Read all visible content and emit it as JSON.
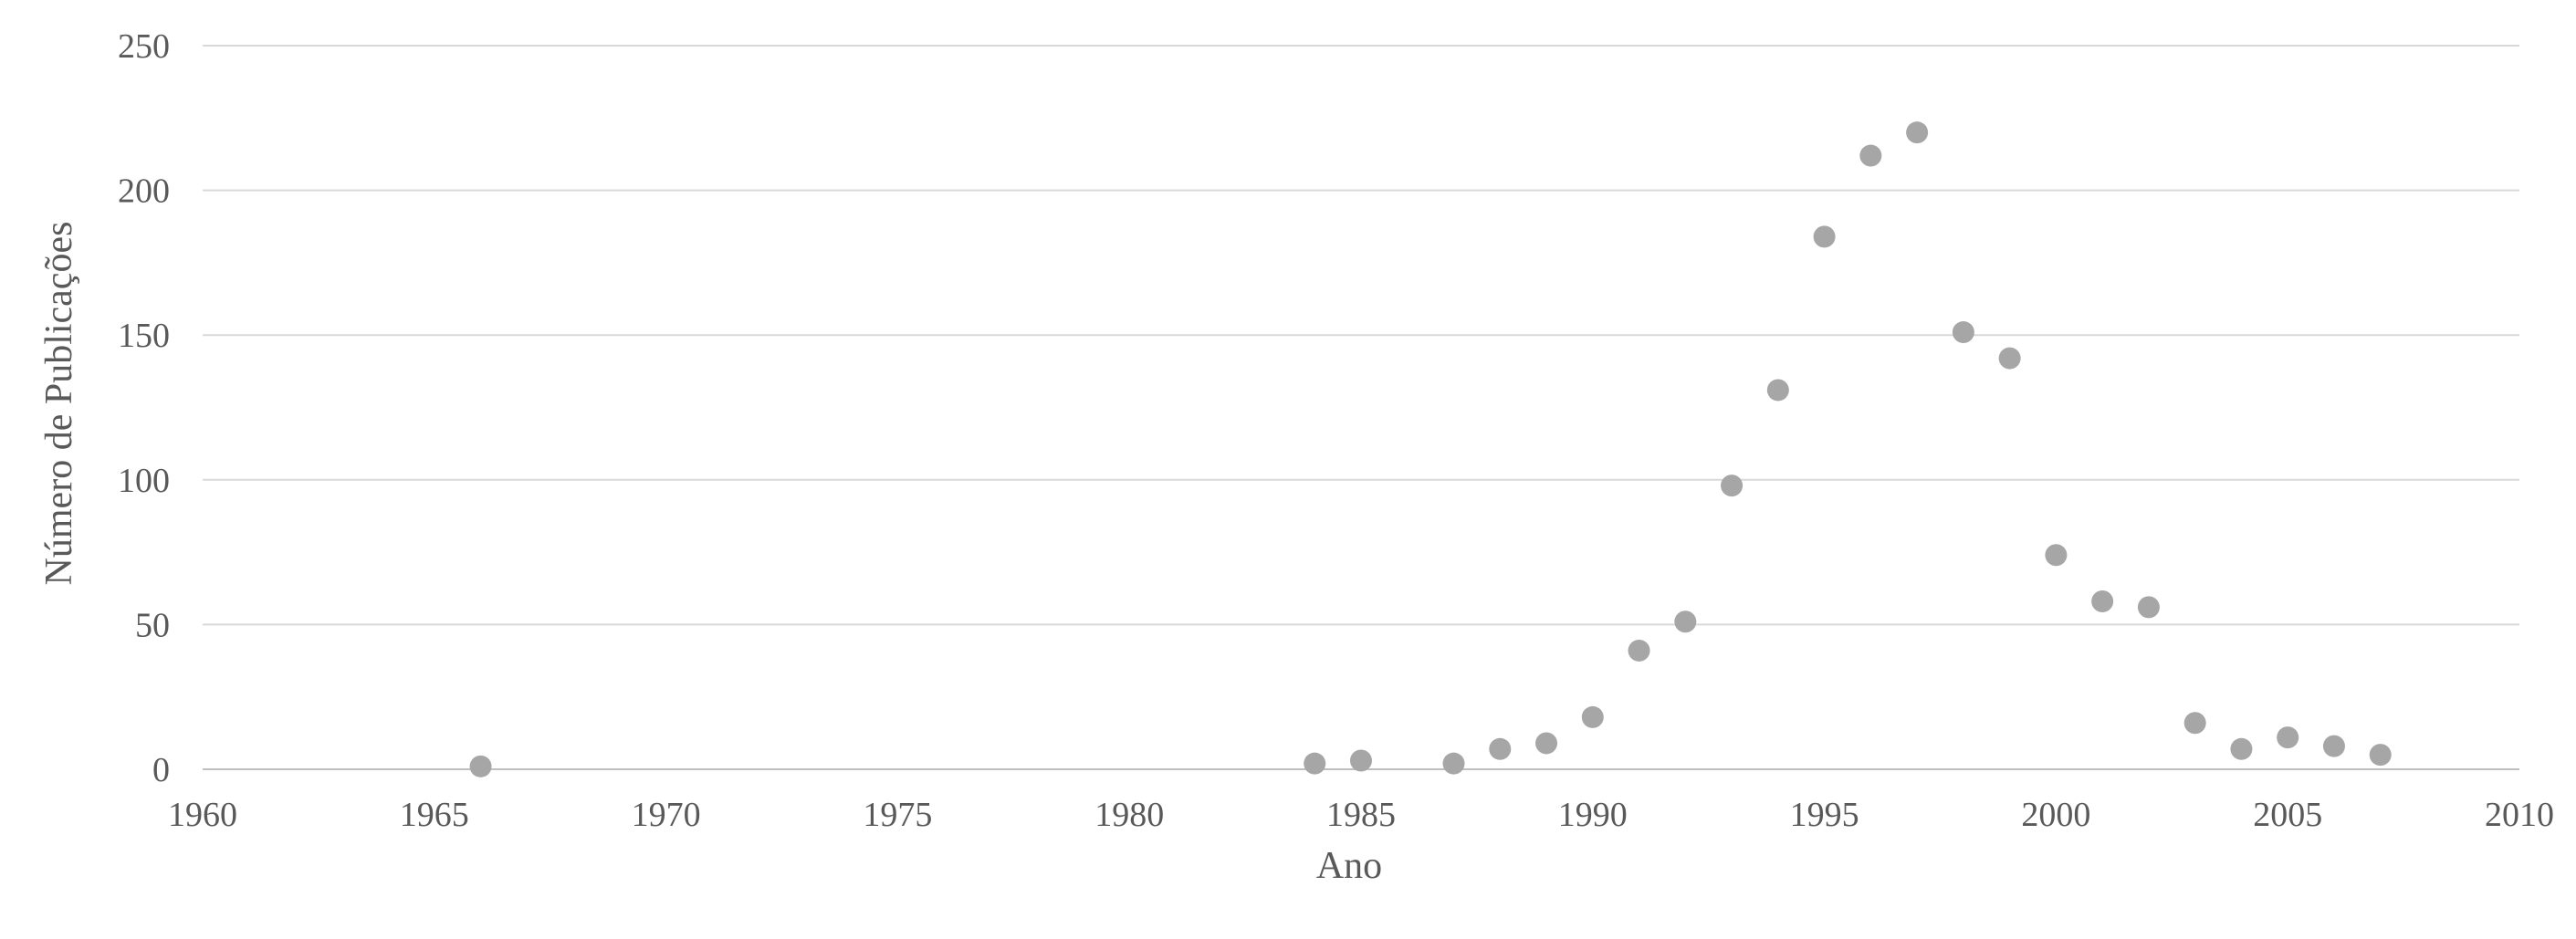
{
  "chart_data": {
    "type": "scatter",
    "title": "",
    "xlabel": "Ano",
    "ylabel": "Número de Publicações",
    "xlim": [
      1960,
      2010
    ],
    "ylim": [
      0,
      250
    ],
    "xticks": [
      1960,
      1965,
      1970,
      1975,
      1980,
      1985,
      1990,
      1995,
      2000,
      2005,
      2010
    ],
    "yticks": [
      0,
      50,
      100,
      150,
      200,
      250
    ],
    "grid": "horizontal",
    "legend": "none",
    "marker_color": "#a6a6a6",
    "points": [
      {
        "x": 1966,
        "y": 1
      },
      {
        "x": 1984,
        "y": 2
      },
      {
        "x": 1985,
        "y": 3
      },
      {
        "x": 1987,
        "y": 2
      },
      {
        "x": 1988,
        "y": 7
      },
      {
        "x": 1989,
        "y": 9
      },
      {
        "x": 1990,
        "y": 18
      },
      {
        "x": 1991,
        "y": 41
      },
      {
        "x": 1992,
        "y": 51
      },
      {
        "x": 1993,
        "y": 98
      },
      {
        "x": 1994,
        "y": 131
      },
      {
        "x": 1995,
        "y": 184
      },
      {
        "x": 1996,
        "y": 212
      },
      {
        "x": 1997,
        "y": 220
      },
      {
        "x": 1998,
        "y": 151
      },
      {
        "x": 1999,
        "y": 142
      },
      {
        "x": 2000,
        "y": 74
      },
      {
        "x": 2001,
        "y": 58
      },
      {
        "x": 2002,
        "y": 56
      },
      {
        "x": 2003,
        "y": 16
      },
      {
        "x": 2004,
        "y": 7
      },
      {
        "x": 2005,
        "y": 11
      },
      {
        "x": 2006,
        "y": 8
      },
      {
        "x": 2007,
        "y": 5
      }
    ]
  }
}
